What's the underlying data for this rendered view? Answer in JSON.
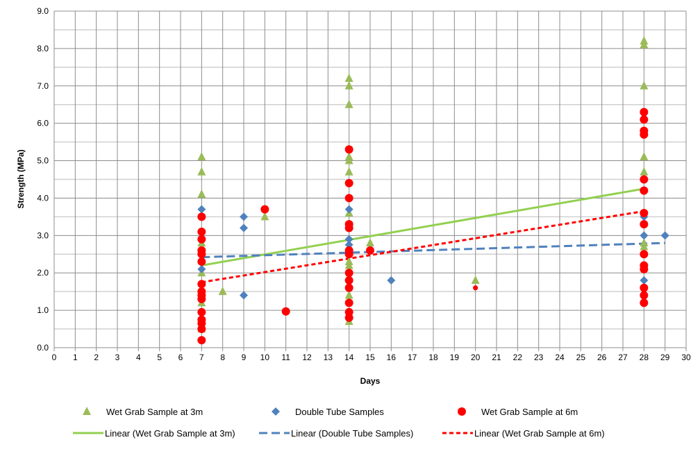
{
  "chart_data": {
    "type": "scatter",
    "title": "",
    "xlabel": "Days",
    "ylabel": "Strength (MPa)",
    "xlim": [
      0,
      30
    ],
    "ylim": [
      0,
      9
    ],
    "xticks": [
      0,
      1,
      2,
      3,
      4,
      5,
      6,
      7,
      8,
      9,
      10,
      11,
      12,
      13,
      14,
      15,
      16,
      17,
      18,
      19,
      20,
      21,
      22,
      23,
      24,
      25,
      26,
      27,
      28,
      29,
      30
    ],
    "yticks": [
      "0.0",
      "1.0",
      "2.0",
      "3.0",
      "4.0",
      "5.0",
      "6.0",
      "7.0",
      "8.0",
      "9.0"
    ],
    "grid": true,
    "legend_position": "bottom",
    "series": [
      {
        "name": "Wet Grab Sample at 3m",
        "marker": "triangle",
        "color": "#9BBB59",
        "points": [
          [
            7,
            5.1
          ],
          [
            7,
            4.7
          ],
          [
            7,
            4.1
          ],
          [
            7,
            2.8
          ],
          [
            7,
            2.0
          ],
          [
            7,
            1.2
          ],
          [
            7,
            0.5
          ],
          [
            8,
            1.5
          ],
          [
            10,
            3.5
          ],
          [
            14,
            7.2
          ],
          [
            14,
            7.0
          ],
          [
            14,
            6.5
          ],
          [
            14,
            5.1
          ],
          [
            14,
            5.0
          ],
          [
            14,
            4.7
          ],
          [
            14,
            3.6
          ],
          [
            14,
            2.3
          ],
          [
            14,
            2.2
          ],
          [
            14,
            1.4
          ],
          [
            14,
            0.7
          ],
          [
            15,
            2.8
          ],
          [
            20,
            1.8
          ],
          [
            28,
            8.2
          ],
          [
            28,
            8.1
          ],
          [
            28,
            7.0
          ],
          [
            28,
            5.1
          ],
          [
            28,
            4.7
          ],
          [
            28,
            2.8
          ],
          [
            28,
            2.7
          ]
        ]
      },
      {
        "name": "Double Tube Samples",
        "marker": "diamond",
        "color": "#4F81BD",
        "points": [
          [
            7,
            3.7
          ],
          [
            7,
            2.1
          ],
          [
            9,
            3.5
          ],
          [
            9,
            3.2
          ],
          [
            9,
            1.4
          ],
          [
            14,
            3.7
          ],
          [
            14,
            2.9
          ],
          [
            14,
            2.75
          ],
          [
            14,
            2.6
          ],
          [
            16,
            1.8
          ],
          [
            28,
            3.5
          ],
          [
            28,
            3.0
          ],
          [
            28,
            1.8
          ],
          [
            29,
            3.0
          ]
        ]
      },
      {
        "name": "Wet Grab Sample at 6m",
        "marker": "circle",
        "color": "#FF0000",
        "points": [
          [
            7,
            3.5
          ],
          [
            7,
            3.1
          ],
          [
            7,
            2.9
          ],
          [
            7,
            2.6
          ],
          [
            7,
            2.5
          ],
          [
            7,
            2.3
          ],
          [
            7,
            1.7
          ],
          [
            7,
            1.5
          ],
          [
            7,
            1.4
          ],
          [
            7,
            1.3
          ],
          [
            7,
            0.95
          ],
          [
            7,
            0.75
          ],
          [
            7,
            0.65
          ],
          [
            7,
            0.5
          ],
          [
            7,
            0.2
          ],
          [
            10,
            3.7
          ],
          [
            11,
            0.97
          ],
          [
            14,
            5.3
          ],
          [
            14,
            4.4
          ],
          [
            14,
            4.0
          ],
          [
            14,
            3.3
          ],
          [
            14,
            3.2
          ],
          [
            14,
            2.6
          ],
          [
            14,
            2.5
          ],
          [
            14,
            2.0
          ],
          [
            14,
            1.8
          ],
          [
            14,
            1.6
          ],
          [
            14,
            1.2
          ],
          [
            14,
            0.95
          ],
          [
            14,
            0.8
          ],
          [
            15,
            2.6
          ],
          [
            20,
            1.6
          ],
          [
            28,
            6.3
          ],
          [
            28,
            6.1
          ],
          [
            28,
            5.8
          ],
          [
            28,
            5.7
          ],
          [
            28,
            4.5
          ],
          [
            28,
            4.2
          ],
          [
            28,
            3.6
          ],
          [
            28,
            3.3
          ],
          [
            28,
            2.5
          ],
          [
            28,
            2.2
          ],
          [
            28,
            2.1
          ],
          [
            28,
            1.6
          ],
          [
            28,
            1.4
          ],
          [
            28,
            1.2
          ]
        ]
      }
    ],
    "trendlines": [
      {
        "name": "Linear (Wet Grab Sample at 3m)",
        "color": "#92D050",
        "dash": "solid",
        "from": [
          7,
          2.2
        ],
        "to": [
          28,
          4.25
        ]
      },
      {
        "name": "Linear (Double Tube Samples)",
        "color": "#4F81BD",
        "dash": "long",
        "from": [
          7,
          2.42
        ],
        "to": [
          29,
          2.8
        ]
      },
      {
        "name": "Linear (Wet Grab Sample at 6m)",
        "color": "#FF0000",
        "dash": "short",
        "from": [
          7,
          1.75
        ],
        "to": [
          28,
          3.65
        ]
      }
    ]
  }
}
